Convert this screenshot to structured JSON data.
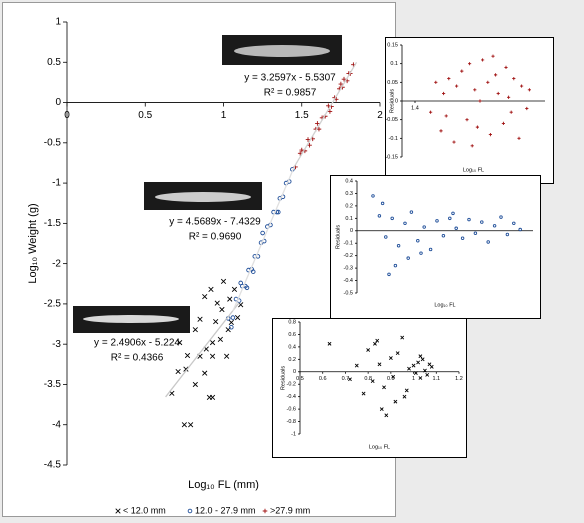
{
  "chart_data": [
    {
      "type": "scatter",
      "xlabel": "Log₁₀ FL (mm)",
      "ylabel": "Log₁₀ Weight (g)",
      "xlim": [
        0,
        2
      ],
      "xticks": [
        0,
        0.5,
        1,
        1.5,
        2
      ],
      "ylim": [
        -4.5,
        1
      ],
      "yticks": [
        1,
        0.5,
        0,
        -0.5,
        -1,
        -1.5,
        -2,
        -2.5,
        -3,
        -3.5,
        -4,
        -4.5
      ],
      "grid": false,
      "series": [
        {
          "name": "< 12.0 mm",
          "color": "#000000",
          "marker": "x",
          "x": [
            0.88,
            0.92,
            0.96,
            0.99,
            0.85,
            0.95,
            1.04,
            1.07,
            1.03,
            0.93,
            0.89,
            0.98,
            0.85,
            0.93,
            1.02,
            0.72,
            0.77,
            0.71,
            0.76,
            0.82,
            0.88,
            0.93,
            0.91,
            0.79,
            0.75,
            0.67,
            1.05,
            1.09,
            1.11,
            1.0,
            0.82
          ],
          "y": [
            -2.41,
            -2.32,
            -2.49,
            -2.57,
            -2.69,
            -2.72,
            -2.44,
            -2.32,
            -2.82,
            -2.98,
            -3.06,
            -2.94,
            -3.15,
            -3.15,
            -3.15,
            -2.98,
            -3.14,
            -3.34,
            -3.31,
            -3.5,
            -3.36,
            -3.66,
            -3.66,
            -4.0,
            -4.0,
            -3.61,
            -2.73,
            -2.67,
            -2.51,
            -2.22,
            -2.82
          ]
        },
        {
          "name": "12.0 - 27.9 mm",
          "color": "#1f4e99",
          "marker": "o",
          "x": [
            1.03,
            1.06,
            1.08,
            1.1,
            1.12,
            1.14,
            1.16,
            1.18,
            1.2,
            1.22,
            1.24,
            1.26,
            1.28,
            1.3,
            1.32,
            1.34,
            1.36,
            1.38,
            1.4,
            1.42,
            1.44,
            1.15,
            1.25,
            1.35,
            1.05,
            1.11,
            1.19
          ],
          "y": [
            -2.68,
            -2.67,
            -2.44,
            -2.46,
            -2.28,
            -2.28,
            -2.08,
            -2.07,
            -1.91,
            -1.91,
            -1.74,
            -1.72,
            -1.54,
            -1.52,
            -1.36,
            -1.36,
            -1.19,
            -1.17,
            -1.0,
            -0.98,
            -0.83,
            -2.3,
            -1.62,
            -1.36,
            -2.79,
            -2.24,
            -2.1
          ]
        },
        {
          "name": ">27.9 mm",
          "color": "#a01010",
          "marker": "+",
          "x": [
            1.46,
            1.49,
            1.52,
            1.54,
            1.57,
            1.59,
            1.61,
            1.63,
            1.65,
            1.67,
            1.69,
            1.71,
            1.72,
            1.74,
            1.76,
            1.77,
            1.79,
            1.8,
            1.81,
            1.83,
            1.6,
            1.68,
            1.75,
            1.55,
            1.5
          ],
          "y": [
            -0.8,
            -0.63,
            -0.6,
            -0.46,
            -0.45,
            -0.33,
            -0.33,
            -0.19,
            -0.17,
            -0.04,
            -0.05,
            0.06,
            0.04,
            0.17,
            0.19,
            0.29,
            0.27,
            0.36,
            0.36,
            0.47,
            -0.26,
            -0.11,
            0.23,
            -0.53,
            -0.59
          ]
        }
      ],
      "trendlines": [
        {
          "slope": 2.4906,
          "intercept": -5.224,
          "xrange": [
            0.63,
            1.1
          ],
          "color": "#c8c8c8",
          "equation": "y = 2.4906x - 5.224",
          "r2": "R² = 0.4366"
        },
        {
          "slope": 4.5689,
          "intercept": -7.4329,
          "xrange": [
            1.06,
            1.45
          ],
          "color": "#e0e0e0",
          "equation": "y = 4.5689x - 7.4329",
          "r2": "R² = 0.9690"
        },
        {
          "slope": 3.2597,
          "intercept": -5.5307,
          "xrange": [
            1.45,
            1.85
          ],
          "color": "#d0d0d0",
          "equation": "y = 3.2597x - 5.5307",
          "r2": "R² = 0.9857"
        }
      ]
    },
    {
      "type": "scatter",
      "xlabel": "Log₁₀ FL",
      "ylabel": "Residuals",
      "xlim": [
        1.35,
        1.9
      ],
      "xticks": [
        1.4
      ],
      "ylim": [
        -0.15,
        0.15
      ],
      "yticks": [
        0.15,
        0.1,
        0.05,
        0,
        -0.05,
        -0.1,
        -0.15
      ],
      "series": [
        {
          "color": "#a01010",
          "marker": "+",
          "x": [
            1.46,
            1.48,
            1.5,
            1.51,
            1.53,
            1.55,
            1.56,
            1.58,
            1.6,
            1.61,
            1.63,
            1.64,
            1.66,
            1.68,
            1.69,
            1.71,
            1.72,
            1.74,
            1.75,
            1.77,
            1.78,
            1.8,
            1.81,
            1.83,
            1.84,
            1.52,
            1.62,
            1.7,
            1.76,
            1.65
          ],
          "y": [
            -0.03,
            0.05,
            -0.08,
            0.02,
            0.06,
            -0.11,
            0.04,
            0.08,
            -0.05,
            0.1,
            0.03,
            -0.07,
            0.11,
            0.05,
            -0.09,
            0.07,
            0.02,
            -0.06,
            0.09,
            -0.03,
            0.06,
            -0.1,
            0.04,
            -0.02,
            0.03,
            -0.04,
            -0.12,
            0.12,
            0.01,
            0
          ]
        }
      ]
    },
    {
      "type": "scatter",
      "xlabel": "Log₁₀ FL",
      "ylabel": "Residuals",
      "xlim": [
        0.95,
        1.5
      ],
      "ylim": [
        -0.5,
        0.4
      ],
      "yticks": [
        0.4,
        0.3,
        0.2,
        0.1,
        0,
        -0.1,
        -0.2,
        -0.3,
        -0.4,
        -0.5
      ],
      "series": [
        {
          "color": "#1f4e99",
          "marker": "o",
          "x": [
            1.0,
            1.02,
            1.04,
            1.06,
            1.08,
            1.1,
            1.12,
            1.14,
            1.16,
            1.18,
            1.2,
            1.22,
            1.24,
            1.26,
            1.28,
            1.3,
            1.32,
            1.34,
            1.36,
            1.38,
            1.4,
            1.42,
            1.44,
            1.46,
            1.03,
            1.07,
            1.11,
            1.05,
            1.15,
            1.25
          ],
          "y": [
            0.28,
            0.12,
            -0.05,
            0.1,
            -0.12,
            0.06,
            0.15,
            -0.08,
            0.03,
            -0.15,
            0.08,
            -0.04,
            0.1,
            0.02,
            -0.06,
            0.09,
            -0.02,
            0.07,
            -0.09,
            0.04,
            0.11,
            -0.03,
            0.06,
            0.01,
            0.22,
            -0.28,
            -0.22,
            -0.35,
            -0.18,
            0.14
          ]
        }
      ]
    },
    {
      "type": "scatter",
      "xlabel": "Log₁₀ FL",
      "ylabel": "Residuals",
      "xlim": [
        0.5,
        1.2
      ],
      "xticks": [
        0.5,
        0.6,
        0.7,
        0.8,
        0.9,
        1,
        1.1,
        1.2
      ],
      "ylim": [
        -1,
        0.8
      ],
      "yticks": [
        0.8,
        0.6,
        0.4,
        0.2,
        0,
        -0.2,
        -0.4,
        -0.6,
        -0.8,
        -1
      ],
      "series": [
        {
          "color": "#000000",
          "marker": "x",
          "x": [
            0.63,
            0.72,
            0.75,
            0.78,
            0.8,
            0.82,
            0.84,
            0.85,
            0.87,
            0.88,
            0.9,
            0.91,
            0.93,
            0.95,
            0.96,
            0.98,
            1.0,
            1.01,
            1.02,
            1.03,
            1.04,
            1.05,
            1.06,
            1.07,
            1.08,
            0.86,
            0.92,
            0.97,
            1.03,
            0.83
          ],
          "y": [
            0.45,
            -0.12,
            0.1,
            -0.35,
            0.35,
            -0.15,
            0.5,
            0.12,
            -0.25,
            -0.7,
            0.22,
            -0.08,
            0.3,
            0.55,
            -0.4,
            0.05,
            0.1,
            -0.02,
            0.15,
            -0.1,
            0.2,
            0.02,
            -0.05,
            0.12,
            0.08,
            -0.6,
            -0.48,
            -0.3,
            0.25,
            0.45
          ]
        }
      ]
    }
  ]
}
